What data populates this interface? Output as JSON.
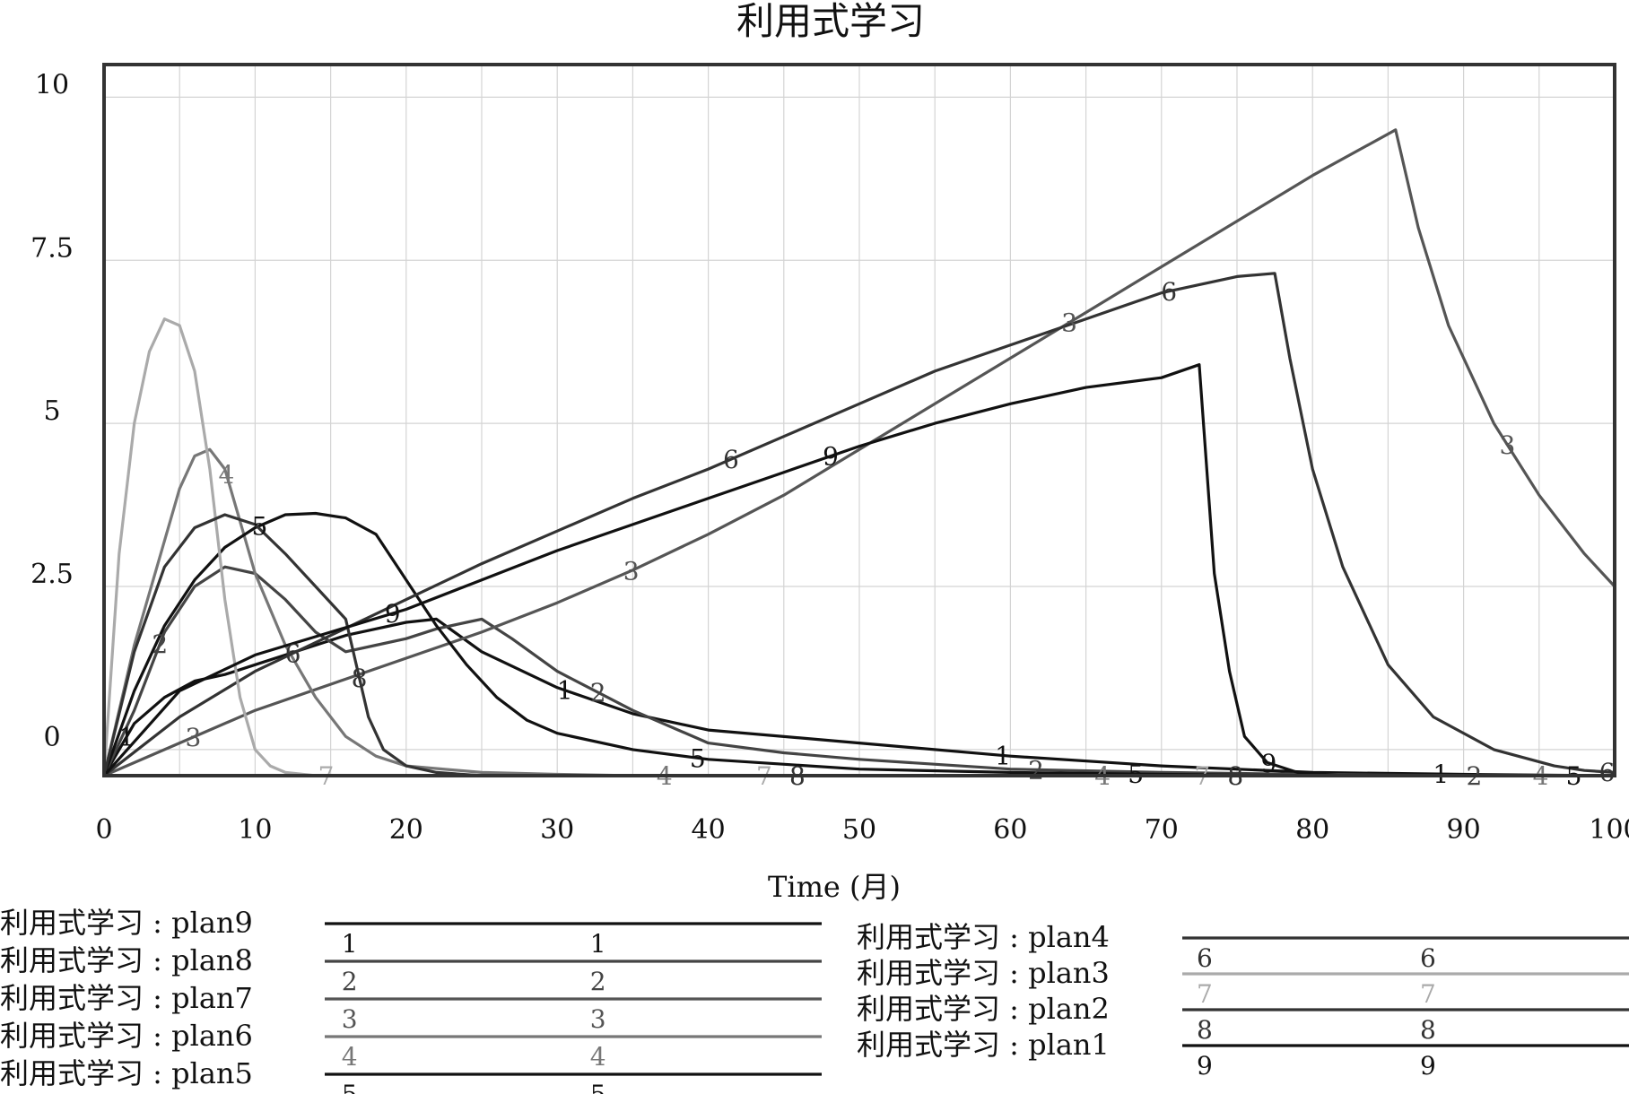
{
  "chart_data": {
    "type": "line",
    "title": "利用式学习",
    "xlabel": "Time (月)",
    "ylabel": "",
    "xlim": [
      0,
      100
    ],
    "ylim": [
      -0.4,
      10.5
    ],
    "xticks": [
      "0",
      "10",
      "20",
      "30",
      "40",
      "50",
      "60",
      "70",
      "80",
      "90",
      "100"
    ],
    "yticks": [
      {
        "value": 10,
        "label": "10"
      },
      {
        "value": 7.5,
        "label": "7.5"
      },
      {
        "value": 5,
        "label": "5"
      },
      {
        "value": 2.5,
        "label": "2.5"
      },
      {
        "value": 0,
        "label": "0"
      }
    ],
    "grid": true,
    "legend_position": "bottom",
    "series": [
      {
        "name": "利用式学习 : plan9",
        "marker": "1",
        "color": "#111111",
        "x": [
          0,
          2,
          4,
          6,
          8,
          10,
          12,
          14,
          16,
          18,
          20,
          22,
          25,
          30,
          35,
          40,
          50,
          60,
          70,
          80,
          90,
          100
        ],
        "y": [
          -0.4,
          0.4,
          0.8,
          1.05,
          1.15,
          1.3,
          1.45,
          1.6,
          1.75,
          1.85,
          1.95,
          2.0,
          1.5,
          0.95,
          0.55,
          0.3,
          0.1,
          -0.1,
          -0.25,
          -0.35,
          -0.38,
          -0.4
        ]
      },
      {
        "name": "利用式学习 : plan8",
        "marker": "2",
        "color": "#444444",
        "x": [
          0,
          2,
          4,
          6,
          8,
          10,
          12,
          14,
          16,
          18,
          20,
          22,
          24,
          25,
          27,
          30,
          35,
          40,
          45,
          50,
          60,
          70,
          80,
          90,
          100
        ],
        "y": [
          -0.4,
          0.6,
          1.8,
          2.5,
          2.8,
          2.7,
          2.3,
          1.8,
          1.5,
          1.6,
          1.7,
          1.85,
          1.95,
          2.0,
          1.7,
          1.2,
          0.6,
          0.1,
          -0.05,
          -0.15,
          -0.3,
          -0.35,
          -0.38,
          -0.4,
          -0.4
        ]
      },
      {
        "name": "利用式学习 : plan7",
        "marker": "3",
        "color": "#555555",
        "x": [
          0,
          5,
          10,
          15,
          20,
          25,
          30,
          35,
          40,
          45,
          50,
          55,
          60,
          65,
          70,
          75,
          80,
          85.5,
          87,
          89,
          92,
          95,
          98,
          100
        ],
        "y": [
          -0.4,
          0.1,
          0.6,
          1.0,
          1.4,
          1.8,
          2.25,
          2.75,
          3.3,
          3.9,
          4.6,
          5.3,
          6.0,
          6.7,
          7.4,
          8.1,
          8.8,
          9.5,
          8.0,
          6.5,
          5.0,
          3.9,
          3.0,
          2.5
        ]
      },
      {
        "name": "利用式学习 : plan6",
        "marker": "4",
        "color": "#777777",
        "x": [
          0,
          2,
          4,
          5,
          6,
          7,
          8,
          9,
          10,
          12,
          14,
          16,
          18,
          20,
          25,
          30,
          35,
          40,
          50,
          60,
          70,
          80,
          90,
          100
        ],
        "y": [
          -0.4,
          1.6,
          3.2,
          4.0,
          4.5,
          4.6,
          4.3,
          3.5,
          2.7,
          1.6,
          0.8,
          0.2,
          -0.1,
          -0.25,
          -0.35,
          -0.38,
          -0.4,
          -0.4,
          -0.4,
          -0.4,
          -0.4,
          -0.4,
          -0.4,
          -0.4
        ]
      },
      {
        "name": "利用式学习 : plan5",
        "marker": "5",
        "color": "#111111",
        "x": [
          0,
          2,
          4,
          6,
          8,
          10,
          12,
          14,
          16,
          18,
          20,
          22,
          24,
          26,
          28,
          30,
          35,
          40,
          50,
          60,
          70,
          80,
          90,
          100
        ],
        "y": [
          -0.4,
          0.9,
          1.9,
          2.6,
          3.1,
          3.4,
          3.6,
          3.62,
          3.55,
          3.3,
          2.6,
          1.9,
          1.3,
          0.8,
          0.45,
          0.25,
          0.0,
          -0.15,
          -0.3,
          -0.35,
          -0.38,
          -0.4,
          -0.4,
          -0.4
        ]
      },
      {
        "name": "利用式学习 : plan4",
        "marker": "6",
        "color": "#333333",
        "x": [
          0,
          5,
          10,
          15,
          20,
          25,
          30,
          35,
          40,
          45,
          50,
          55,
          60,
          65,
          70,
          75,
          77.5,
          78.5,
          80,
          82,
          85,
          88,
          92,
          96,
          98,
          100
        ],
        "y": [
          -0.4,
          0.5,
          1.2,
          1.75,
          2.3,
          2.85,
          3.35,
          3.85,
          4.3,
          4.8,
          5.3,
          5.8,
          6.2,
          6.6,
          7.0,
          7.25,
          7.3,
          6.0,
          4.3,
          2.8,
          1.3,
          0.5,
          0.0,
          -0.25,
          -0.32,
          -0.35
        ]
      },
      {
        "name": "利用式学习 : plan3",
        "marker": "7",
        "color": "#aaaaaa",
        "x": [
          0,
          1,
          2,
          3,
          4,
          5,
          6,
          7,
          8,
          9,
          10,
          11,
          12,
          14,
          16,
          20,
          30,
          40,
          50,
          60,
          70,
          80,
          90,
          100
        ],
        "y": [
          -0.4,
          3.0,
          5.0,
          6.1,
          6.6,
          6.5,
          5.8,
          4.3,
          2.3,
          0.8,
          0.0,
          -0.25,
          -0.35,
          -0.4,
          -0.4,
          -0.4,
          -0.4,
          -0.4,
          -0.4,
          -0.4,
          -0.4,
          -0.4,
          -0.4,
          -0.4
        ]
      },
      {
        "name": "利用式学习 : plan2",
        "marker": "8",
        "color": "#333333",
        "x": [
          0,
          2,
          4,
          6,
          8,
          10,
          12,
          14,
          16,
          16.8,
          17.5,
          18.5,
          20,
          22,
          25,
          30,
          40,
          50,
          60,
          70,
          80,
          90,
          100
        ],
        "y": [
          -0.4,
          1.5,
          2.8,
          3.4,
          3.6,
          3.45,
          3.0,
          2.5,
          2.0,
          1.2,
          0.5,
          0.0,
          -0.25,
          -0.35,
          -0.4,
          -0.4,
          -0.4,
          -0.4,
          -0.4,
          -0.4,
          -0.4,
          -0.4,
          -0.4
        ]
      },
      {
        "name": "利用式学习 : plan1",
        "marker": "9",
        "color": "#111111",
        "x": [
          0,
          5,
          10,
          15,
          20,
          25,
          30,
          35,
          40,
          45,
          50,
          55,
          60,
          65,
          70,
          72.5,
          73.5,
          74.5,
          75.5,
          77,
          79,
          82,
          90,
          100
        ],
        "y": [
          -0.4,
          0.9,
          1.45,
          1.8,
          2.15,
          2.6,
          3.05,
          3.45,
          3.85,
          4.25,
          4.65,
          5.0,
          5.3,
          5.55,
          5.7,
          5.9,
          2.7,
          1.2,
          0.2,
          -0.2,
          -0.35,
          -0.4,
          -0.4,
          -0.4
        ]
      }
    ]
  }
}
